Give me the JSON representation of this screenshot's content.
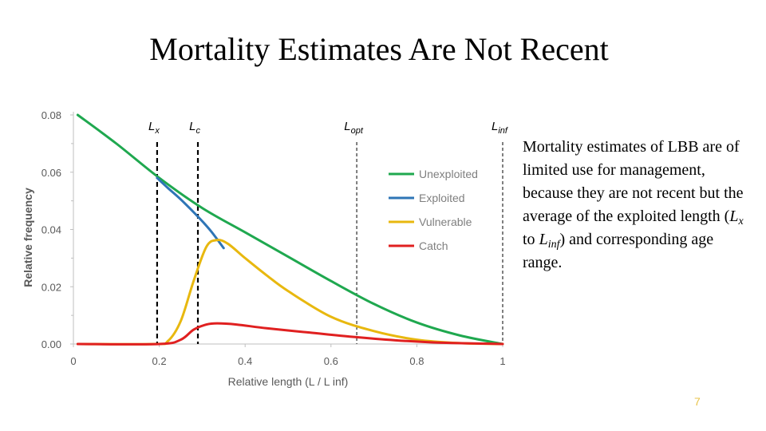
{
  "slide": {
    "title": "Mortality Estimates Are Not Recent",
    "body": {
      "part1": "Mortality estimates of LBB are of limited use for management, because they are not recent but the average of the exploited length (",
      "lx_main": "L",
      "lx_sub": "x",
      "to": " to ",
      "linf_main": "L",
      "linf_sub": "inf",
      "part2": ") and corresponding age range."
    },
    "page_number": "7"
  },
  "chart_data": {
    "type": "line",
    "title": "",
    "xlabel": "Relative length (L / L inf)",
    "ylabel": "Relative frequency",
    "xlim": [
      0,
      1
    ],
    "ylim": [
      0,
      0.08
    ],
    "x_ticks": [
      "0",
      "0.2",
      "0.4",
      "0.6",
      "0.8",
      "1"
    ],
    "y_ticks": [
      "0.00",
      "0.02",
      "0.04",
      "0.06",
      "0.08"
    ],
    "reference_lines": [
      {
        "label": "Lx",
        "main": "L",
        "sub": "x",
        "x": 0.195,
        "style": "dashed-thick"
      },
      {
        "label": "Lc",
        "main": "L",
        "sub": "c",
        "x": 0.29,
        "style": "dashed-thick"
      },
      {
        "label": "Lopt",
        "main": "L",
        "sub": "opt",
        "x": 0.66,
        "style": "dashed-thin"
      },
      {
        "label": "Linf",
        "main": "L",
        "sub": "inf",
        "x": 1.0,
        "style": "dashed-thin"
      }
    ],
    "legend_position": "right",
    "series": [
      {
        "name": "Unexploited",
        "color": "#1fa84f",
        "x": [
          0.01,
          0.1,
          0.2,
          0.3,
          0.4,
          0.5,
          0.6,
          0.7,
          0.8,
          0.9,
          1.0
        ],
        "y": [
          0.08,
          0.07,
          0.058,
          0.0475,
          0.039,
          0.0305,
          0.022,
          0.014,
          0.0075,
          0.003,
          0.0
        ]
      },
      {
        "name": "Exploited",
        "color": "#2e75b6",
        "x": [
          0.195,
          0.22,
          0.25,
          0.29,
          0.32,
          0.35
        ],
        "y": [
          0.058,
          0.0545,
          0.0505,
          0.0445,
          0.0395,
          0.0335
        ]
      },
      {
        "name": "Vulnerable",
        "color": "#e8b80f",
        "x": [
          0.01,
          0.19,
          0.22,
          0.25,
          0.28,
          0.31,
          0.335,
          0.36,
          0.4,
          0.45,
          0.5,
          0.6,
          0.7,
          0.8,
          0.9,
          1.0
        ],
        "y": [
          0.0,
          0.0,
          0.001,
          0.008,
          0.022,
          0.034,
          0.0363,
          0.035,
          0.03,
          0.024,
          0.0185,
          0.0095,
          0.0045,
          0.0015,
          0.0003,
          0.0
        ]
      },
      {
        "name": "Catch",
        "color": "#e02020",
        "x": [
          0.01,
          0.2,
          0.25,
          0.28,
          0.31,
          0.335,
          0.38,
          0.45,
          0.55,
          0.65,
          0.75,
          0.85,
          1.0
        ],
        "y": [
          0.0,
          0.0,
          0.0015,
          0.005,
          0.0068,
          0.0072,
          0.0068,
          0.0055,
          0.004,
          0.0025,
          0.0013,
          0.0005,
          0.0
        ]
      }
    ]
  }
}
